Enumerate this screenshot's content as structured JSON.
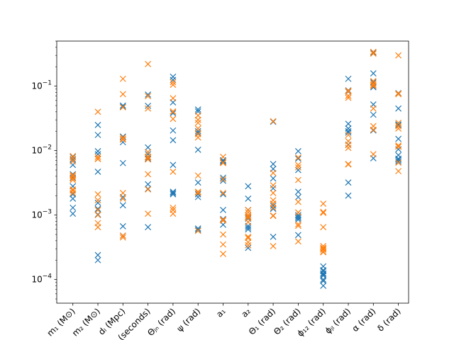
{
  "chart_data": {
    "type": "scatter",
    "title": "",
    "xlabel": "",
    "ylabel": "",
    "yscale": "log",
    "ylim": [
      4.3e-05,
      0.5
    ],
    "y_ticks": [
      {
        "value": 0.0001,
        "base": "10",
        "exp": "−4"
      },
      {
        "value": 0.001,
        "base": "10",
        "exp": "−3"
      },
      {
        "value": 0.01,
        "base": "10",
        "exp": "−2"
      },
      {
        "value": 0.1,
        "base": "10",
        "exp": "−1"
      }
    ],
    "categories": [
      "m₁ (M⊙)",
      "m₂ (M⊙)",
      "dₗ (Mpc)",
      "tₙ (seconds)",
      "Θⱼₙ (rad)",
      "ψ (rad)",
      "a₁",
      "a₂",
      "Θ₁ (rad)",
      "Θ₂ (rad)",
      "ϕ₁₂ (rad)",
      "ϕⱼₗ (rad)",
      "α (rad)",
      "δ (rad)"
    ],
    "grid": false,
    "legend": "none",
    "marker": "x",
    "series": [
      {
        "color": "#1f77b4",
        "values": [
          [
            0.008,
            0.0072,
            0.006,
            0.0043,
            0.0038,
            0.0028,
            0.0021,
            0.0018,
            0.0013,
            0.00105
          ],
          [
            0.025,
            0.0175,
            0.0098,
            0.0088,
            0.0047,
            0.00155,
            0.00125,
            0.00102,
            0.00024,
            0.0002
          ],
          [
            0.05,
            0.048,
            0.0165,
            0.015,
            0.0135,
            0.0064,
            0.0019,
            0.00142,
            0.00067,
            0.00048
          ],
          [
            0.074,
            0.0495,
            0.0112,
            0.0088,
            0.008,
            0.0075,
            0.0074,
            0.003,
            0.00255,
            0.00065
          ],
          [
            0.14,
            0.125,
            0.056,
            0.038,
            0.0205,
            0.0145,
            0.006,
            0.0023,
            0.0022,
            0.0021
          ],
          [
            0.0435,
            0.0405,
            0.02,
            0.0188,
            0.0103,
            0.0032,
            0.0021,
            0.0019,
            0.00062,
            0.00059
          ],
          [
            0.0071,
            0.0069,
            0.0067,
            0.0038,
            0.0034,
            0.0021,
            0.0012,
            0.00087,
            0.00084,
            0.00071
          ],
          [
            0.0028,
            0.0018,
            0.0012,
            0.00095,
            0.00092,
            0.00088,
            0.00068,
            0.00064,
            0.0006,
            0.00031
          ],
          [
            0.028,
            0.0062,
            0.0052,
            0.0037,
            0.0026,
            0.0015,
            0.0014,
            0.00125,
            0.00098,
            0.00046
          ],
          [
            0.0098,
            0.0075,
            0.005,
            0.0023,
            0.0019,
            0.001,
            0.00095,
            0.0009,
            0.00085,
            0.00049
          ],
          [
            0.00027,
            0.00016,
            0.00014,
            0.000135,
            0.000125,
            0.00012,
            0.000115,
            0.0001,
            9.5e-05,
            8e-05
          ],
          [
            0.13,
            0.086,
            0.082,
            0.026,
            0.022,
            0.02,
            0.019,
            0.0124,
            0.0032,
            0.002
          ],
          [
            0.33,
            0.158,
            0.115,
            0.1,
            0.096,
            0.052,
            0.036,
            0.021,
            0.0205,
            0.0076
          ],
          [
            0.078,
            0.045,
            0.0255,
            0.025,
            0.0152,
            0.0105,
            0.0085,
            0.0075,
            0.0072,
            0.0068
          ]
        ]
      },
      {
        "color": "#ff7f0e",
        "values": [
          [
            0.0082,
            0.0075,
            0.0068,
            0.0042,
            0.004,
            0.0037,
            0.0035,
            0.0025,
            0.0024,
            0.0022
          ],
          [
            0.04,
            0.008,
            0.0075,
            0.0074,
            0.0021,
            0.0017,
            0.0012,
            0.001,
            0.00075,
            0.00065
          ],
          [
            0.13,
            0.075,
            0.047,
            0.016,
            0.015,
            0.0148,
            0.0022,
            0.0018,
            0.00048,
            0.00045
          ],
          [
            0.22,
            0.07,
            0.045,
            0.0095,
            0.008,
            0.0078,
            0.0073,
            0.0043,
            0.0025,
            0.00105
          ],
          [
            0.115,
            0.105,
            0.065,
            0.0405,
            0.04,
            0.031,
            0.0047,
            0.0013,
            0.0012,
            0.00105
          ],
          [
            0.035,
            0.03,
            0.027,
            0.022,
            0.018,
            0.016,
            0.0041,
            0.0023,
            0.0022,
            0.00057
          ],
          [
            0.008,
            0.0065,
            0.0064,
            0.0036,
            0.0022,
            0.00085,
            0.00082,
            0.0005,
            0.00035,
            0.00025
          ],
          [
            0.0012,
            0.0011,
            0.001,
            0.00095,
            0.0009,
            0.00078,
            0.00046,
            0.00044,
            0.00038,
            0.00034
          ],
          [
            0.0285,
            0.0045,
            0.0029,
            0.0022,
            0.0017,
            0.0015,
            0.0013,
            0.00098,
            0.00097,
            0.00033
          ],
          [
            0.0078,
            0.006,
            0.0055,
            0.0035,
            0.0016,
            0.0011,
            0.0011,
            0.00072,
            0.00068,
            0.00039
          ],
          [
            0.0015,
            0.00112,
            0.00108,
            0.00065,
            0.00033,
            0.00031,
            0.0003,
            0.00029,
            0.00027,
            0.000265
          ],
          [
            0.085,
            0.083,
            0.071,
            0.066,
            0.0175,
            0.014,
            0.0122,
            0.011,
            0.0062,
            0.0061
          ],
          [
            0.34,
            0.32,
            0.12,
            0.11,
            0.104,
            0.1,
            0.045,
            0.024,
            0.021,
            0.0088
          ],
          [
            0.3,
            0.077,
            0.075,
            0.027,
            0.024,
            0.022,
            0.012,
            0.0115,
            0.0065,
            0.0048
          ]
        ]
      }
    ]
  }
}
